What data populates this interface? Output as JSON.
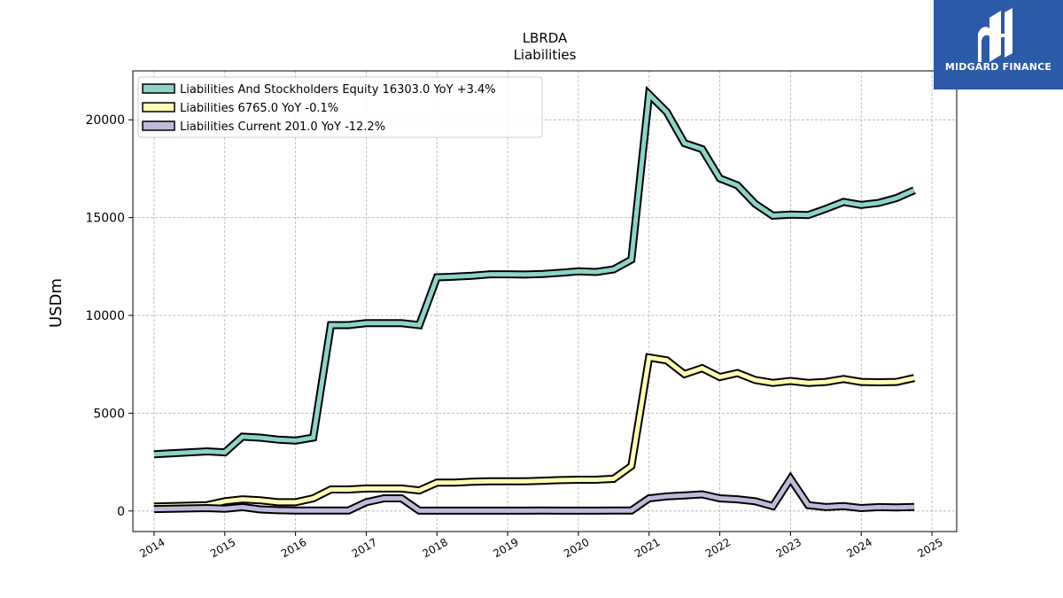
{
  "logo": {
    "text": "MIDGARD FINANCE",
    "background": "#2d5aa8"
  },
  "chart_data": {
    "type": "line",
    "title": "LBRDA",
    "subtitle": "Liabilities",
    "xlabel": "",
    "ylabel": "USDm",
    "xlim": [
      2013.7,
      2025.35
    ],
    "ylim": [
      -1050,
      22500
    ],
    "x_ticks": [
      2014,
      2015,
      2016,
      2017,
      2018,
      2019,
      2020,
      2021,
      2022,
      2023,
      2024,
      2025
    ],
    "x_tick_labels": [
      "2014",
      "2015",
      "2016",
      "2017",
      "2018",
      "2019",
      "2020",
      "2021",
      "2022",
      "2023",
      "2024",
      "2025"
    ],
    "y_ticks": [
      0,
      5000,
      10000,
      15000,
      20000
    ],
    "y_tick_labels": [
      "0",
      "5000",
      "10000",
      "15000",
      "20000"
    ],
    "grid": true,
    "legend_position": "top-left",
    "x": [
      2014.0,
      2014.75,
      2015.0,
      2015.25,
      2015.5,
      2015.75,
      2016.0,
      2016.25,
      2016.5,
      2016.75,
      2017.0,
      2017.25,
      2017.5,
      2017.75,
      2018.0,
      2018.25,
      2018.5,
      2018.75,
      2019.0,
      2019.25,
      2019.5,
      2019.75,
      2020.0,
      2020.25,
      2020.5,
      2020.75,
      2021.0,
      2021.25,
      2021.5,
      2021.75,
      2022.0,
      2022.25,
      2022.5,
      2022.75,
      2023.0,
      2023.25,
      2023.5,
      2023.75,
      2024.0,
      2024.25,
      2024.5,
      2024.75
    ],
    "series": [
      {
        "name": "Liabilities And Stockholders Equity  16303.0 YoY +3.4%",
        "color": "#8dd3c7",
        "values": [
          2900,
          3050,
          3000,
          3800,
          3750,
          3650,
          3600,
          3750,
          9500,
          9500,
          9600,
          9600,
          9600,
          9500,
          11950,
          11980,
          12030,
          12100,
          12100,
          12090,
          12120,
          12180,
          12250,
          12220,
          12350,
          12850,
          21300,
          20400,
          18800,
          18500,
          17000,
          16650,
          15700,
          15100,
          15150,
          15130,
          15450,
          15800,
          15650,
          15750,
          16000,
          16400
        ]
      },
      {
        "name": "Liabilities  6765.0 YoY -0.1%",
        "color": "#ffffb3",
        "values": [
          230,
          300,
          500,
          600,
          550,
          450,
          450,
          650,
          1100,
          1100,
          1150,
          1150,
          1150,
          1050,
          1450,
          1450,
          1500,
          1520,
          1520,
          1520,
          1550,
          1580,
          1600,
          1600,
          1650,
          2300,
          7850,
          7700,
          7000,
          7300,
          6850,
          7050,
          6700,
          6550,
          6650,
          6550,
          6600,
          6750,
          6600,
          6580,
          6600,
          6800
        ]
      },
      {
        "name": "Liabilities Current  201.0 YoY -12.2%",
        "color": "#bebada",
        "values": [
          100,
          150,
          120,
          200,
          80,
          40,
          30,
          30,
          30,
          30,
          450,
          650,
          650,
          20,
          20,
          20,
          20,
          20,
          20,
          20,
          30,
          20,
          20,
          20,
          30,
          30,
          650,
          750,
          800,
          850,
          650,
          600,
          500,
          250,
          1650,
          300,
          200,
          250,
          150,
          200,
          180,
          210
        ]
      }
    ]
  }
}
